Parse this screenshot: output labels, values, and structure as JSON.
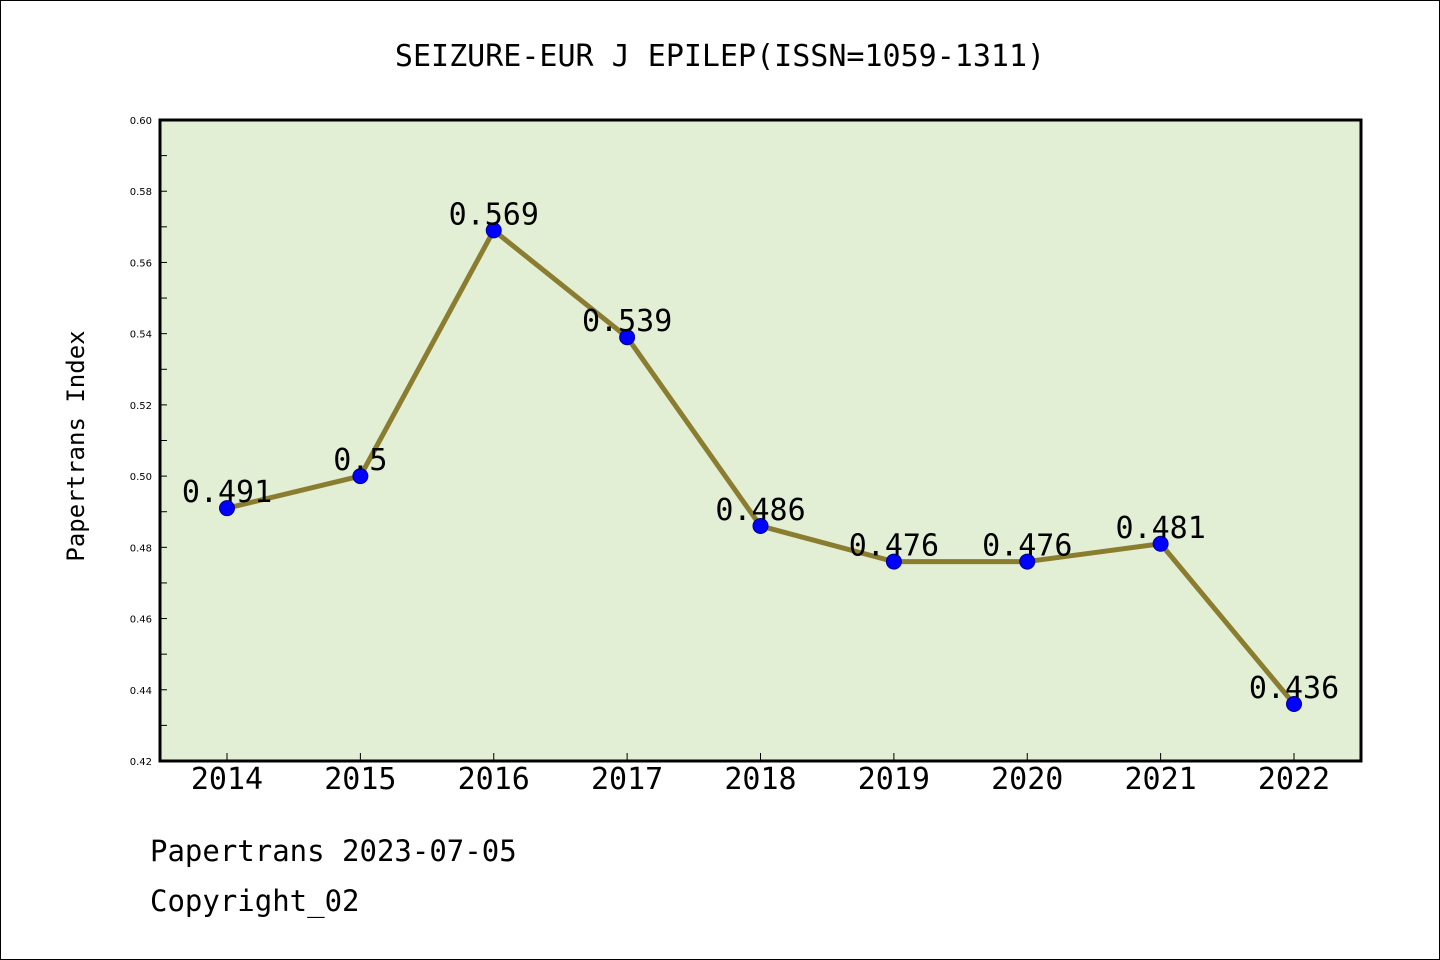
{
  "chart_data": {
    "type": "line",
    "title": "SEIZURE-EUR J EPILEP(ISSN=1059-1311)",
    "xlabel": "",
    "ylabel": "Papertrans Index",
    "categories": [
      "2014",
      "2015",
      "2016",
      "2017",
      "2018",
      "2019",
      "2020",
      "2021",
      "2022"
    ],
    "values": [
      0.491,
      0.5,
      0.569,
      0.539,
      0.486,
      0.476,
      0.476,
      0.481,
      0.436
    ],
    "data_labels": [
      "0.491",
      "0.5",
      "0.569",
      "0.539",
      "0.486",
      "0.476",
      "0.476",
      "0.481",
      "0.436"
    ],
    "ylim": [
      0.42,
      0.6
    ],
    "yticks": [
      "0.42",
      "0.44",
      "0.46",
      "0.48",
      "0.50",
      "0.52",
      "0.54",
      "0.56",
      "0.58",
      "0.60"
    ],
    "grid": false,
    "colors": {
      "line": "#8b7d30",
      "marker": "#0000ff",
      "plot_bg": "#e2efd5"
    }
  },
  "footer": {
    "date_line": "Papertrans 2023-07-05",
    "copyright": "Copyright_02"
  }
}
